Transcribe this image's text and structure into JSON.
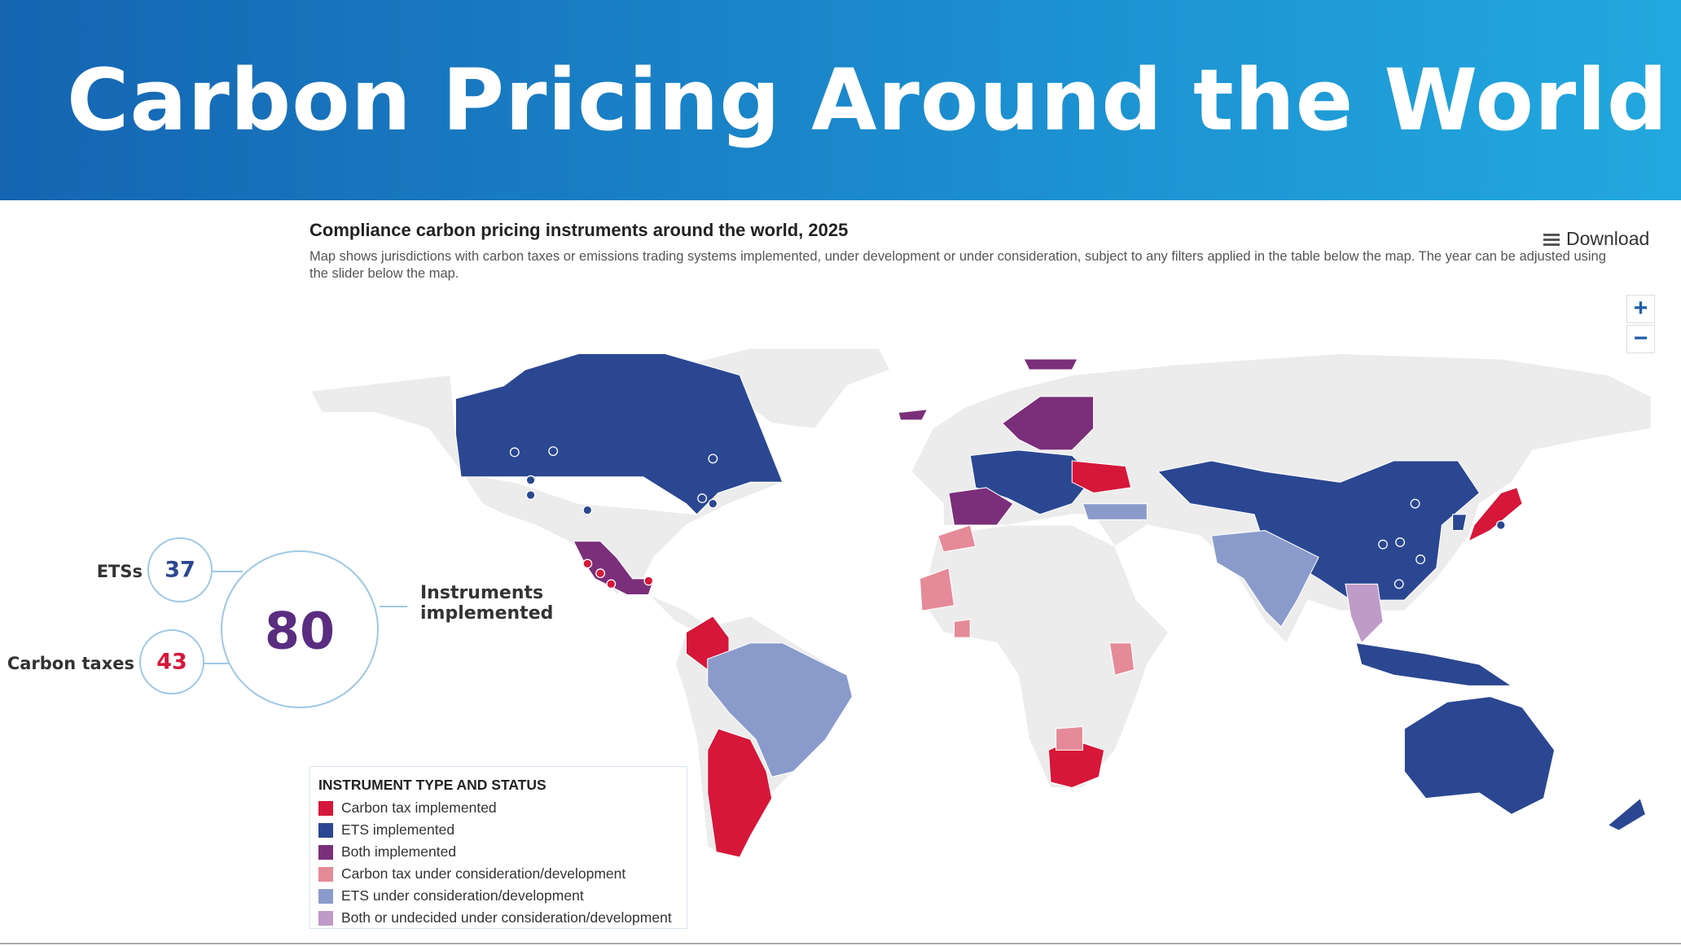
{
  "header": {
    "title": "Carbon Pricing Around the World"
  },
  "map": {
    "title": "Compliance carbon pricing instruments around the world, 2025",
    "subtitle": "Map shows jurisdictions with carbon taxes or emissions trading systems implemented, under development or under consideration, subject to any filters applied in the table below the map. The year can be adjusted using the slider below the map.",
    "download": "Download",
    "zoom_in": "+",
    "zoom_out": "−"
  },
  "summary": {
    "ets_label": "ETSs",
    "ets_count": 37,
    "tax_label": "Carbon taxes",
    "tax_count": 43,
    "total": 80,
    "total_label": "Instruments implemented"
  },
  "legend": {
    "title": "INSTRUMENT TYPE AND STATUS",
    "items": [
      {
        "label": "Carbon tax implemented",
        "color": "#d6173a"
      },
      {
        "label": "ETS implemented",
        "color": "#2b4791"
      },
      {
        "label": "Both implemented",
        "color": "#7b2f7a"
      },
      {
        "label": "Carbon tax under consideration/development",
        "color": "#e58a98"
      },
      {
        "label": "ETS under consideration/development",
        "color": "#8a9bcb"
      },
      {
        "label": "Both or undecided under consideration/development",
        "color": "#bf9bc8"
      }
    ]
  }
}
